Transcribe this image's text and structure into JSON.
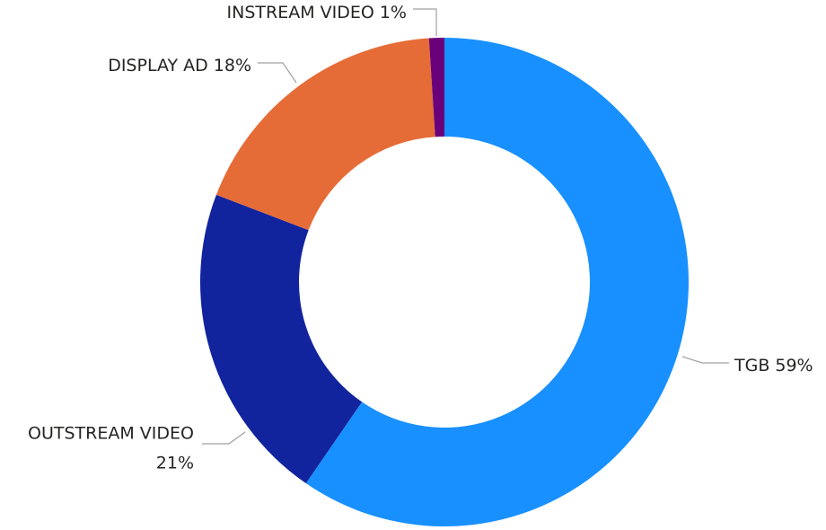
{
  "chart_data": {
    "type": "donut",
    "categories": [
      "TGB",
      "OUTSTREAM VIDEO",
      "DISPLAY AD",
      "INSTREAM VIDEO"
    ],
    "values": [
      59,
      21,
      18,
      1
    ],
    "value_labels": [
      "59%",
      "21%",
      "18%",
      "1%"
    ],
    "colors": [
      "#1890ff",
      "#12239e",
      "#e66c37",
      "#6b007b"
    ]
  }
}
